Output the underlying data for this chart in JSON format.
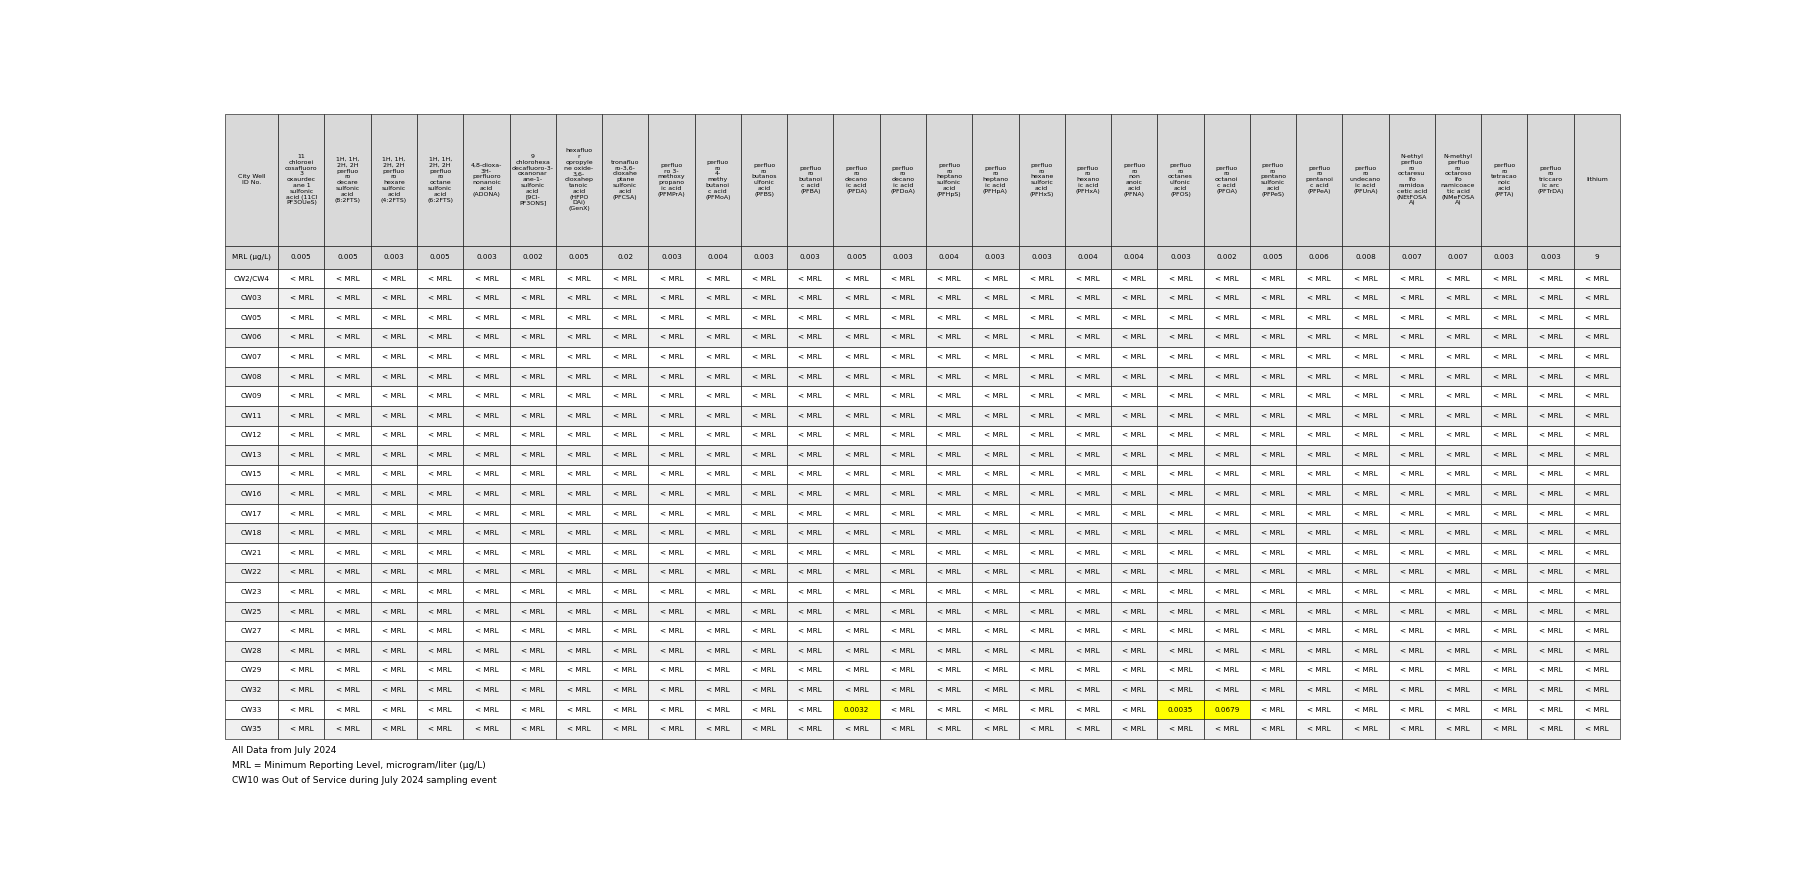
{
  "col_headers": [
    "City Well\nID No.",
    "11\nchloroei\ncosafluoro\n3\noxaurdec\nane 1\nsulfonic\nacid (11Cl\nPF3OUeS)",
    "1H, 1H,\n2H, 2H\nperfluo\nro\ndecare\nsulfonic\nacid\n(8:2FTS)",
    "1H, 1H,\n2H, 2H\nperfluo\nro\nhexare\nsulfonic\nacid\n(4:2FTS)",
    "1H, 1H,\n2H, 2H\nperfluo\nro\noctane\nsulfonic\nacid\n(6:2FTS)",
    "4,8-dioxa-\n3H-\nperfluoro\nnonanoic\nacid\n(ADONA)",
    "9\nchlorohexa\ndecafluoro-3-\noxanonar\nane-1-\nsulfonic\nacid\n[9Cl-\nPF3ONS]",
    "hexafluo\nr\nopropyle\nne oxide-\n3,6-\ndioxahep\ntanoic\nacid\n(HFPO\nDAi)\n(GenX)",
    "tronafluo\nro-3,6-\ndioxahe\nptane\nsulfonic\nacid\n(PFCSA)",
    "perfluo\nro 3-\nmethoxy\npropano\nic acid\n(PFMPrA)",
    "perfluo\nro\n4-\nmethy\nbutanoi\nc acid\n(PFMoA)",
    "perfluo\nro\nbutanos\nulfonic\nacid\n(PFBS)",
    "perfluo\nro\nbutanoi\nc acid\n(PFBA)",
    "perfluo\nro\ndecano\nic acid\n(PFDA)",
    "perfluo\nro\ndecano\nic acid\n(PFDoA)",
    "perfluo\nro\nheptano\nsulfonic\nacid\n(PFHpS)",
    "perfluo\nro\nheptano\nic acid\n(PFHpA)",
    "perfluo\nro\nhexane\nsulforic\nacid\n(PFHxS)",
    "perfluo\nro\nhexano\nic acid\n(PFHxA)",
    "perfluo\nro\nnon\nanoic\nacid\n(PFNA)",
    "perfluo\nro\noctanes\nulfonic\nacid\n(PFOS)",
    "perfluo\nro\noctanoi\nc acid\n(PFOA)",
    "perfluo\nro\npentano\nsulfonic\nacid\n(PFPeS)",
    "perfluo\nro\npentanoi\nc acid\n(PFPeA)",
    "perfluo\nro\nundecano\nic acid\n(PFUnA)",
    "N-ethyl\nperfluo\nro\noctaresu\nlfo\nramidoa\ncetic acid\n(NEtFOSA\nA)",
    "N-methyl\nperfluo\nro\noctaroso\nlfo\nnamicoace\ntic acid\n(NMeFOSA\nA)",
    "perfluo\nro\ntetracao\nnoic\nacid\n(PFTA)",
    "perfluo\nro\ntriccaro\nic arc\n(PFTrDA)",
    "lithium"
  ],
  "mrl_row": [
    "MRL (μg/L)",
    "0.005",
    "0.005",
    "0.003",
    "0.005",
    "0.003",
    "0.002",
    "0.005",
    "0.02",
    "0.003",
    "0.004",
    "0.003",
    "0.003",
    "0.005",
    "0.003",
    "0.004",
    "0.003",
    "0.003",
    "0.004",
    "0.004",
    "0.003",
    "0.002",
    "0.005",
    "0.006",
    "0.008",
    "0.007",
    "0.007",
    "0.003",
    "0.003",
    "9"
  ],
  "well_ids": [
    "CW2/CW4",
    "CW03",
    "CW05",
    "CW06",
    "CW07",
    "CW08",
    "CW09",
    "CW11",
    "CW12",
    "CW13",
    "CW15",
    "CW16",
    "CW17",
    "CW18",
    "CW21",
    "CW22",
    "CW23",
    "CW25",
    "CW27",
    "CW28",
    "CW29",
    "CW32",
    "CW33",
    "CW35"
  ],
  "special_values": {
    "CW33_col13": "0.0032",
    "CW33_col20": "0.0035",
    "CW33_col21": "0.0679"
  },
  "footnotes": [
    "All Data from July 2024",
    "MRL = Minimum Reporting Level, microgram/liter (μg/L)",
    "CW10 was Out of Service during July 2024 sampling event"
  ],
  "default_cell": "< MRL",
  "header_bg": "#d9d9d9",
  "mrl_bg": "#d9d9d9",
  "alt_row_bg": "#f0f0f0",
  "row_bg": "#ffffff",
  "highlight_bg": "#ffff00",
  "border_color": "#000000",
  "text_color": "#000000",
  "font_size": 5.2,
  "header_font_size": 4.5
}
